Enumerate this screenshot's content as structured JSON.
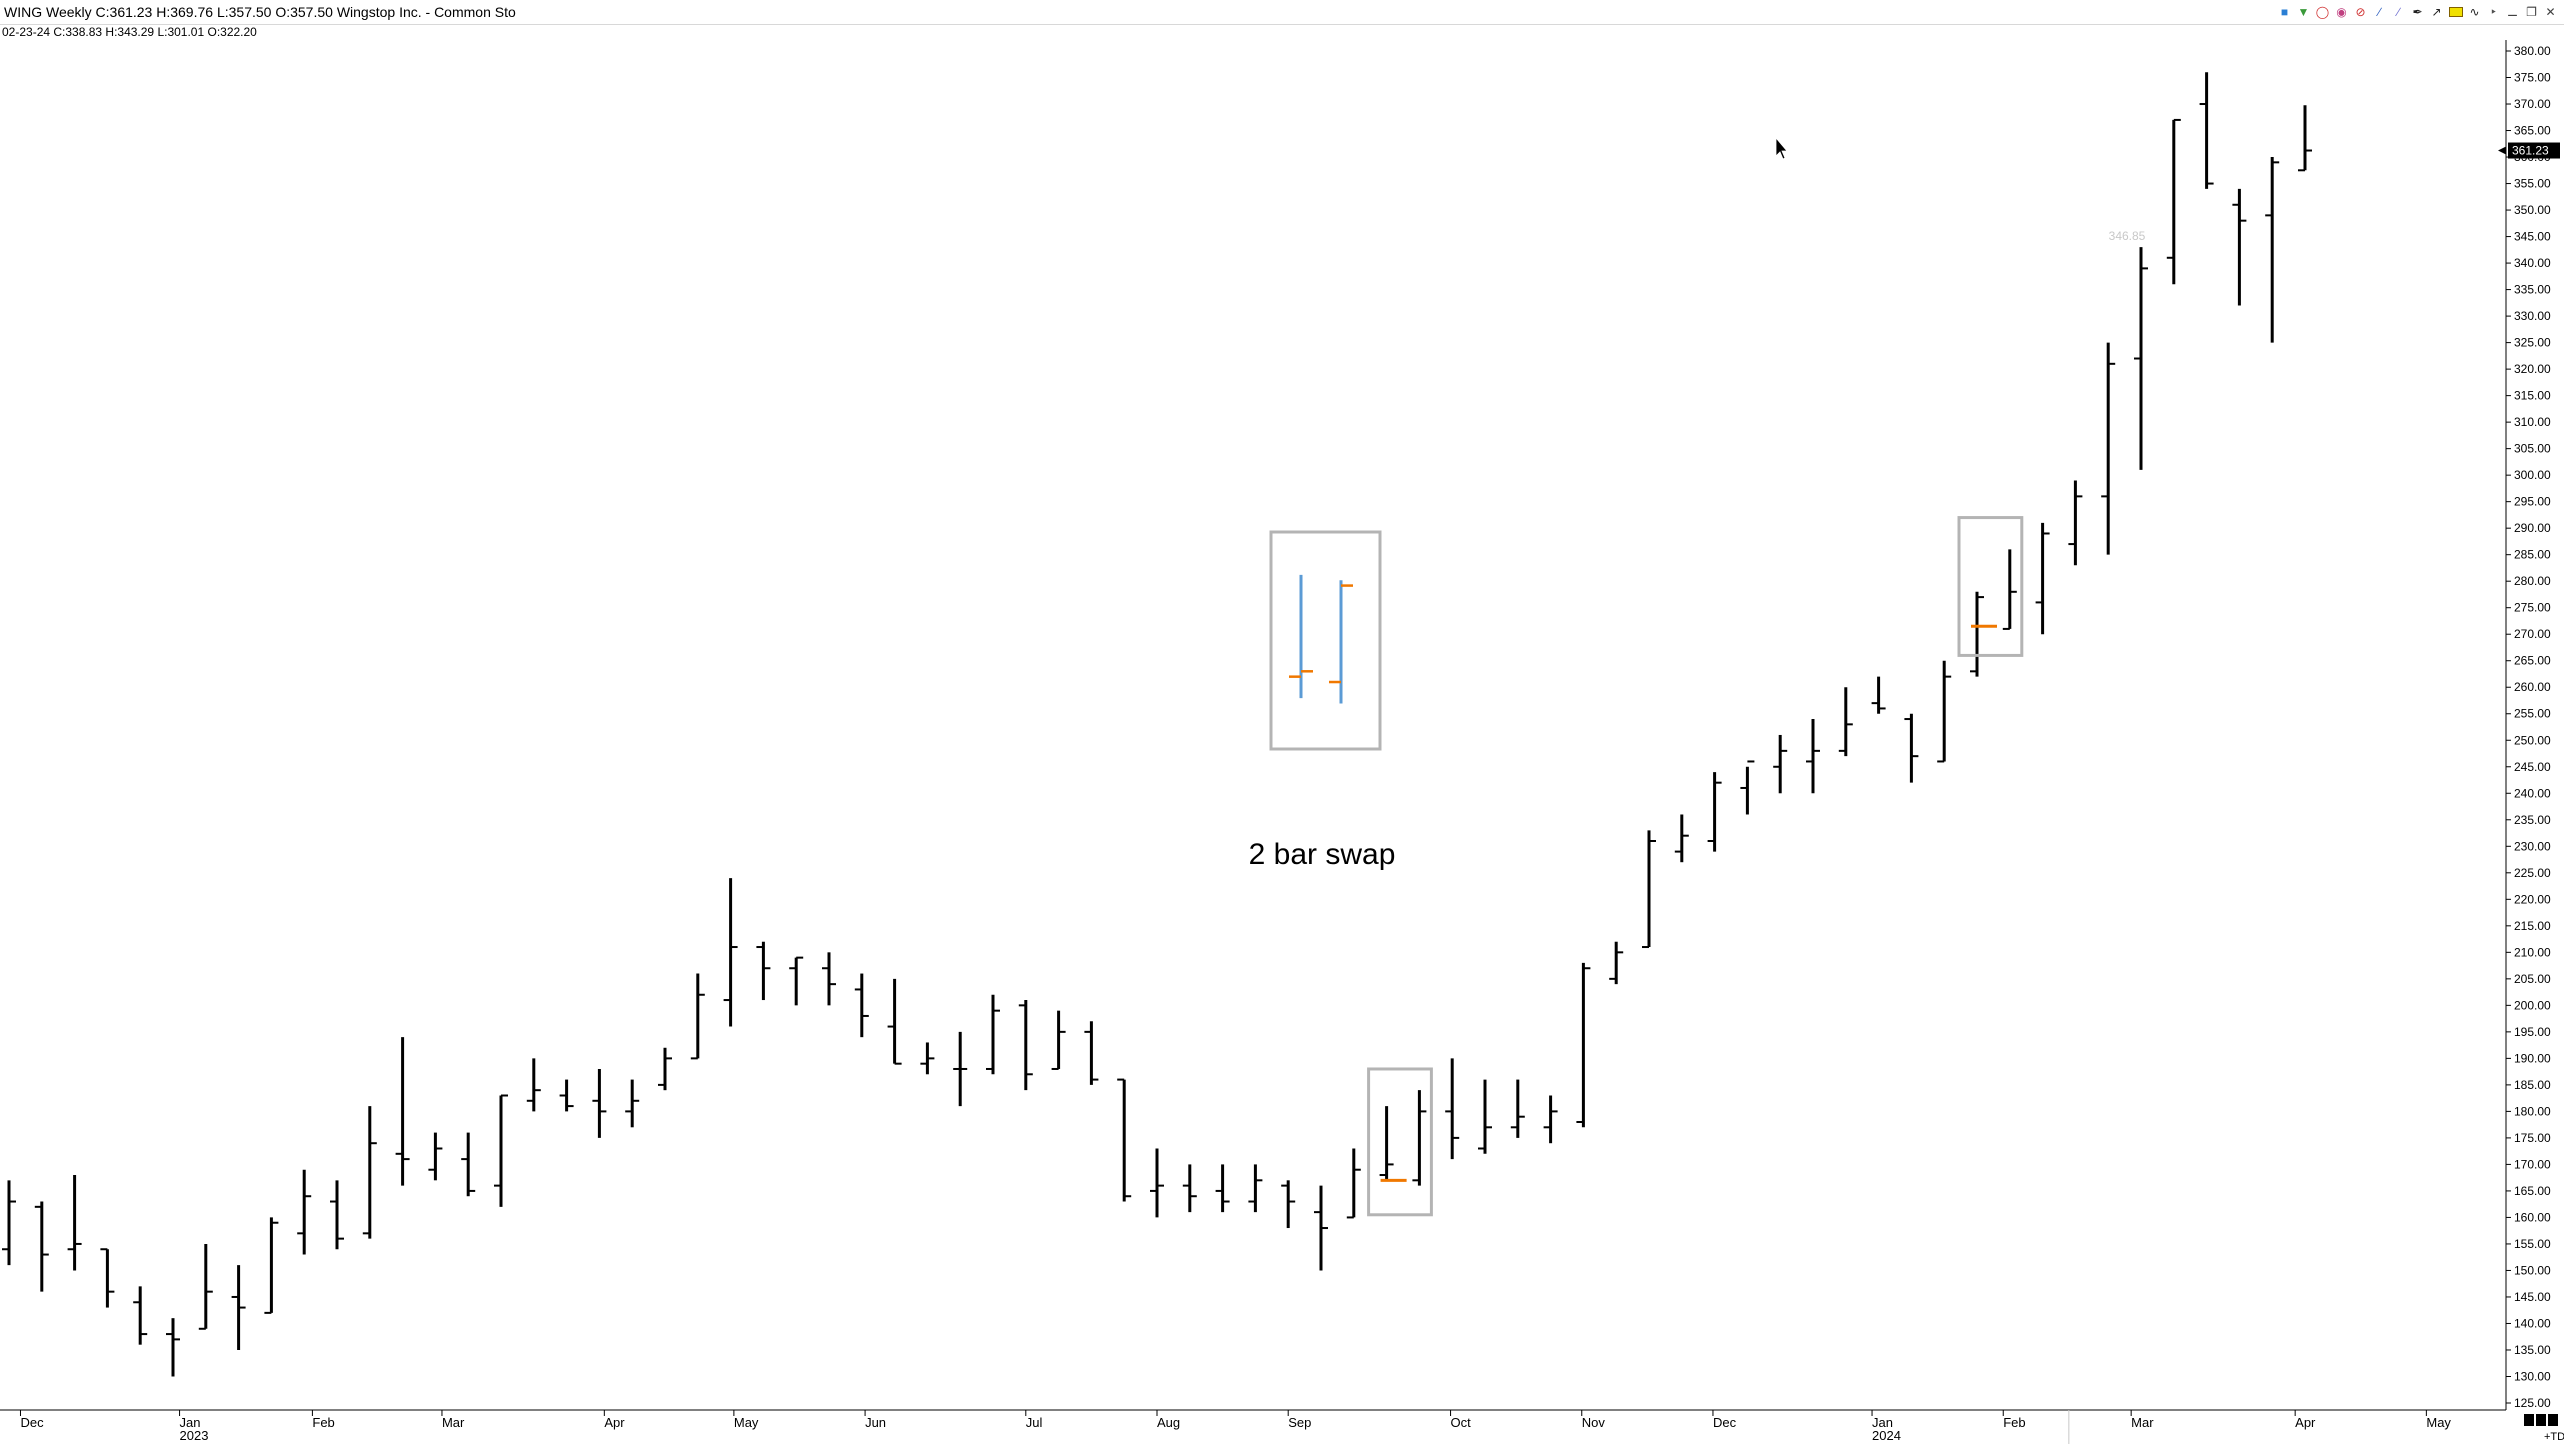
{
  "header": {
    "title": "WING Weekly C:361.23 H:369.76 L:357.50 O:357.50 Wingstop Inc. - Common Sto",
    "prev_bar": "02-23-24  C:338.83  H:343.29  L:301.01  O:322.20"
  },
  "toolbar": {
    "icons": [
      "cube-icon",
      "tree-icon",
      "alarm-icon",
      "palette-icon",
      "no-icon",
      "line-tool-icon",
      "pen-icon",
      "arrow-icon",
      "rectangle-icon",
      "wave-icon",
      "pin-icon",
      "minimize-icon",
      "restore-icon",
      "close-icon"
    ]
  },
  "price_marker": {
    "label": "361.23",
    "value": 361.23
  },
  "annotation": {
    "text": "2 bar swap"
  },
  "faded_label": {
    "text": "346.85",
    "value": 346.85
  },
  "footer": {
    "corner": "+TD"
  },
  "colors": {
    "bar": "#000000",
    "box": "#b4b4b4",
    "orange": "#f07800",
    "blue": "#5b9bd5",
    "grid": "#000000"
  },
  "chart_data": {
    "type": "ohlc",
    "y_axis": {
      "range": [
        125,
        380
      ],
      "step": 5,
      "tick_labels": [
        "125.00",
        "130.00",
        "135.00",
        "140.00",
        "145.00",
        "150.00",
        "155.00",
        "160.00",
        "165.00",
        "170.00",
        "175.00",
        "180.00",
        "185.00",
        "190.00",
        "195.00",
        "200.00",
        "205.00",
        "210.00",
        "215.00",
        "220.00",
        "225.00",
        "230.00",
        "235.00",
        "240.00",
        "245.00",
        "250.00",
        "255.00",
        "260.00",
        "265.00",
        "270.00",
        "275.00",
        "280.00",
        "285.00",
        "290.00",
        "295.00",
        "300.00",
        "305.00",
        "310.00",
        "315.00",
        "320.00",
        "325.00",
        "330.00",
        "335.00",
        "340.00",
        "345.00",
        "350.00",
        "355.00",
        "360.00",
        "365.00",
        "370.00",
        "375.00",
        "380.00"
      ]
    },
    "x_axis": {
      "months": [
        {
          "label": "Dec",
          "sub": "",
          "at": 0.35
        },
        {
          "label": "Jan",
          "sub": "2023",
          "at": 5.2
        },
        {
          "label": "Feb",
          "sub": "",
          "at": 9.25
        },
        {
          "label": "Mar",
          "sub": "",
          "at": 13.2
        },
        {
          "label": "Apr",
          "sub": "",
          "at": 18.15
        },
        {
          "label": "May",
          "sub": "",
          "at": 22.1
        },
        {
          "label": "Jun",
          "sub": "",
          "at": 26.1
        },
        {
          "label": "Jul",
          "sub": "",
          "at": 31.0
        },
        {
          "label": "Aug",
          "sub": "",
          "at": 35.0
        },
        {
          "label": "Sep",
          "sub": "",
          "at": 39.0
        },
        {
          "label": "Oct",
          "sub": "",
          "at": 43.95
        },
        {
          "label": "Nov",
          "sub": "",
          "at": 47.95
        },
        {
          "label": "Dec",
          "sub": "",
          "at": 51.95
        },
        {
          "label": "Jan",
          "sub": "2024",
          "at": 56.8
        },
        {
          "label": "Feb",
          "sub": "",
          "at": 60.8
        },
        {
          "label": "Mar",
          "sub": "",
          "at": 64.7
        },
        {
          "label": "Apr",
          "sub": "",
          "at": 69.7
        },
        {
          "label": "May",
          "sub": "",
          "at": 73.7
        }
      ]
    },
    "bars": [
      {
        "o": 154,
        "h": 167,
        "l": 151,
        "c": 163
      },
      {
        "o": 162,
        "h": 163,
        "l": 146,
        "c": 153
      },
      {
        "o": 154,
        "h": 168,
        "l": 150,
        "c": 155
      },
      {
        "o": 154,
        "h": 154,
        "l": 143,
        "c": 146
      },
      {
        "o": 144,
        "h": 147,
        "l": 136,
        "c": 138
      },
      {
        "o": 138,
        "h": 141,
        "l": 130,
        "c": 137
      },
      {
        "o": 139,
        "h": 155,
        "l": 139,
        "c": 146
      },
      {
        "o": 145,
        "h": 151,
        "l": 135,
        "c": 143
      },
      {
        "o": 142,
        "h": 160,
        "l": 142,
        "c": 159
      },
      {
        "o": 157,
        "h": 169,
        "l": 153,
        "c": 164
      },
      {
        "o": 163,
        "h": 167,
        "l": 154,
        "c": 156
      },
      {
        "o": 157,
        "h": 181,
        "l": 156,
        "c": 174
      },
      {
        "o": 172,
        "h": 194,
        "l": 166,
        "c": 171
      },
      {
        "o": 169,
        "h": 176,
        "l": 167,
        "c": 173
      },
      {
        "o": 171,
        "h": 176,
        "l": 164,
        "c": 165
      },
      {
        "o": 166,
        "h": 183,
        "l": 162,
        "c": 183
      },
      {
        "o": 182,
        "h": 190,
        "l": 180,
        "c": 184
      },
      {
        "o": 183,
        "h": 186,
        "l": 180,
        "c": 181
      },
      {
        "o": 182,
        "h": 188,
        "l": 175,
        "c": 180
      },
      {
        "o": 180,
        "h": 186,
        "l": 177,
        "c": 182
      },
      {
        "o": 185,
        "h": 192,
        "l": 184,
        "c": 190
      },
      {
        "o": 190,
        "h": 206,
        "l": 190,
        "c": 202
      },
      {
        "o": 201,
        "h": 224,
        "l": 196,
        "c": 211
      },
      {
        "o": 211,
        "h": 212,
        "l": 201,
        "c": 207
      },
      {
        "o": 207,
        "h": 209,
        "l": 200,
        "c": 209
      },
      {
        "o": 207,
        "h": 210,
        "l": 200,
        "c": 204
      },
      {
        "o": 203,
        "h": 206,
        "l": 194,
        "c": 198
      },
      {
        "o": 196,
        "h": 205,
        "l": 189,
        "c": 189
      },
      {
        "o": 189,
        "h": 193,
        "l": 187,
        "c": 190
      },
      {
        "o": 188,
        "h": 195,
        "l": 181,
        "c": 188
      },
      {
        "o": 188,
        "h": 202,
        "l": 187,
        "c": 199
      },
      {
        "o": 200,
        "h": 201,
        "l": 184,
        "c": 187
      },
      {
        "o": 188,
        "h": 199,
        "l": 188,
        "c": 195
      },
      {
        "o": 195,
        "h": 197,
        "l": 185,
        "c": 186
      },
      {
        "o": 186,
        "h": 186,
        "l": 163,
        "c": 164
      },
      {
        "o": 165,
        "h": 173,
        "l": 160,
        "c": 166
      },
      {
        "o": 166,
        "h": 170,
        "l": 161,
        "c": 164
      },
      {
        "o": 165,
        "h": 170,
        "l": 161,
        "c": 163
      },
      {
        "o": 163,
        "h": 170,
        "l": 161,
        "c": 167
      },
      {
        "o": 166,
        "h": 167,
        "l": 158,
        "c": 163
      },
      {
        "o": 161,
        "h": 166,
        "l": 150,
        "c": 158
      },
      {
        "o": 160,
        "h": 173,
        "l": 160,
        "c": 169
      },
      {
        "o": 168,
        "h": 181,
        "l": 167,
        "c": 170
      },
      {
        "o": 167,
        "h": 184,
        "l": 166,
        "c": 180
      },
      {
        "o": 180,
        "h": 190,
        "l": 171,
        "c": 175
      },
      {
        "o": 173,
        "h": 186,
        "l": 172,
        "c": 177
      },
      {
        "o": 177,
        "h": 186,
        "l": 175,
        "c": 179
      },
      {
        "o": 177,
        "h": 183,
        "l": 174,
        "c": 180
      },
      {
        "o": 178,
        "h": 208,
        "l": 177,
        "c": 207
      },
      {
        "o": 205,
        "h": 212,
        "l": 204,
        "c": 210
      },
      {
        "o": 211,
        "h": 233,
        "l": 211,
        "c": 231
      },
      {
        "o": 229,
        "h": 236,
        "l": 227,
        "c": 232
      },
      {
        "o": 231,
        "h": 244,
        "l": 229,
        "c": 242
      },
      {
        "o": 241,
        "h": 245,
        "l": 236,
        "c": 246
      },
      {
        "o": 245,
        "h": 251,
        "l": 240,
        "c": 248
      },
      {
        "o": 246,
        "h": 254,
        "l": 240,
        "c": 248
      },
      {
        "o": 248,
        "h": 260,
        "l": 247,
        "c": 253
      },
      {
        "o": 257,
        "h": 262,
        "l": 255,
        "c": 256
      },
      {
        "o": 254,
        "h": 255,
        "l": 242,
        "c": 247
      },
      {
        "o": 246,
        "h": 265,
        "l": 246,
        "c": 262
      },
      {
        "o": 263,
        "h": 278,
        "l": 262,
        "c": 277
      },
      {
        "o": 271,
        "h": 286,
        "l": 271,
        "c": 278
      },
      {
        "o": 276,
        "h": 291,
        "l": 270,
        "c": 289
      },
      {
        "o": 287,
        "h": 299,
        "l": 283,
        "c": 296
      },
      {
        "o": 296,
        "h": 325,
        "l": 285,
        "c": 321
      },
      {
        "o": 322,
        "h": 343,
        "l": 301,
        "c": 339
      },
      {
        "o": 341,
        "h": 367,
        "l": 336,
        "c": 367
      },
      {
        "o": 370,
        "h": 376,
        "l": 354,
        "c": 355
      },
      {
        "o": 351,
        "h": 354,
        "l": 332,
        "c": 348
      },
      {
        "o": 349,
        "h": 360,
        "l": 325,
        "c": 359
      },
      {
        "o": 357.5,
        "h": 369.76,
        "l": 357.5,
        "c": 361.23
      }
    ],
    "highlight_boxes": [
      {
        "from": 42,
        "to": 43,
        "y_low": 160.5,
        "y_high": 188
      },
      {
        "from": 60,
        "to": 61,
        "y_low": 266,
        "y_high": 292
      }
    ],
    "highlight_lines": [
      {
        "bar": 42,
        "y": 167
      },
      {
        "bar": 60,
        "y": 271.5
      }
    ],
    "inset": {
      "bars": [
        {
          "o": 262,
          "h": 281,
          "l": 258,
          "c": 263
        },
        {
          "o": 261,
          "h": 280,
          "l": 257,
          "c": 279
        }
      ],
      "y_range": [
        248.5,
        289
      ]
    }
  }
}
